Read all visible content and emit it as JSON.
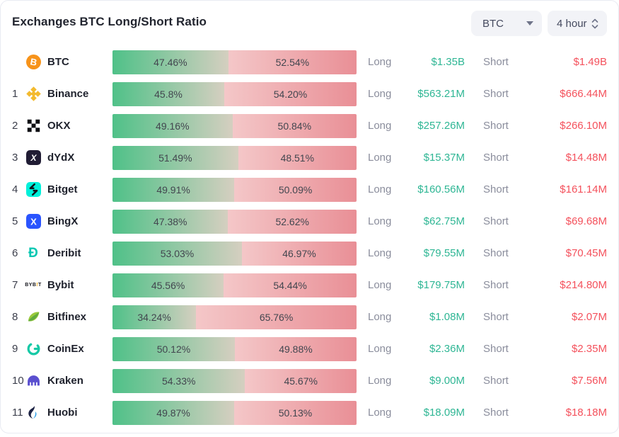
{
  "header": {
    "title": "Exchanges BTC Long/Short Ratio"
  },
  "controls": {
    "symbol": "BTC",
    "interval": "4 hour"
  },
  "labels": {
    "long": "Long",
    "short": "Short"
  },
  "colors": {
    "long_value_text": "#2eb694",
    "short_value_text": "#f4515c",
    "bar_green_start": "#4fc188",
    "bar_green_end": "#d5cfc0",
    "bar_red_start": "#f4c7c8",
    "bar_red_end": "#e98f96"
  },
  "rows": [
    {
      "rank": "",
      "icon": "btc-icon",
      "name": "BTC",
      "long_pct": 47.46,
      "short_pct": 52.54,
      "long_pct_label": "47.46%",
      "short_pct_label": "52.54%",
      "long_value": "$1.35B",
      "short_value": "$1.49B"
    },
    {
      "rank": "1",
      "icon": "binance-icon",
      "name": "Binance",
      "long_pct": 45.8,
      "short_pct": 54.2,
      "long_pct_label": "45.8%",
      "short_pct_label": "54.20%",
      "long_value": "$563.21M",
      "short_value": "$666.44M"
    },
    {
      "rank": "2",
      "icon": "okx-icon",
      "name": "OKX",
      "long_pct": 49.16,
      "short_pct": 50.84,
      "long_pct_label": "49.16%",
      "short_pct_label": "50.84%",
      "long_value": "$257.26M",
      "short_value": "$266.10M"
    },
    {
      "rank": "3",
      "icon": "dydx-icon",
      "name": "dYdX",
      "long_pct": 51.49,
      "short_pct": 48.51,
      "long_pct_label": "51.49%",
      "short_pct_label": "48.51%",
      "long_value": "$15.37M",
      "short_value": "$14.48M"
    },
    {
      "rank": "4",
      "icon": "bitget-icon",
      "name": "Bitget",
      "long_pct": 49.91,
      "short_pct": 50.09,
      "long_pct_label": "49.91%",
      "short_pct_label": "50.09%",
      "long_value": "$160.56M",
      "short_value": "$161.14M"
    },
    {
      "rank": "5",
      "icon": "bingx-icon",
      "name": "BingX",
      "long_pct": 47.38,
      "short_pct": 52.62,
      "long_pct_label": "47.38%",
      "short_pct_label": "52.62%",
      "long_value": "$62.75M",
      "short_value": "$69.68M"
    },
    {
      "rank": "6",
      "icon": "deribit-icon",
      "name": "Deribit",
      "long_pct": 53.03,
      "short_pct": 46.97,
      "long_pct_label": "53.03%",
      "short_pct_label": "46.97%",
      "long_value": "$79.55M",
      "short_value": "$70.45M"
    },
    {
      "rank": "7",
      "icon": "bybit-icon",
      "name": "Bybit",
      "long_pct": 45.56,
      "short_pct": 54.44,
      "long_pct_label": "45.56%",
      "short_pct_label": "54.44%",
      "long_value": "$179.75M",
      "short_value": "$214.80M"
    },
    {
      "rank": "8",
      "icon": "bitfinex-icon",
      "name": "Bitfinex",
      "long_pct": 34.24,
      "short_pct": 65.76,
      "long_pct_label": "34.24%",
      "short_pct_label": "65.76%",
      "long_value": "$1.08M",
      "short_value": "$2.07M"
    },
    {
      "rank": "9",
      "icon": "coinex-icon",
      "name": "CoinEx",
      "long_pct": 50.12,
      "short_pct": 49.88,
      "long_pct_label": "50.12%",
      "short_pct_label": "49.88%",
      "long_value": "$2.36M",
      "short_value": "$2.35M"
    },
    {
      "rank": "10",
      "icon": "kraken-icon",
      "name": "Kraken",
      "long_pct": 54.33,
      "short_pct": 45.67,
      "long_pct_label": "54.33%",
      "short_pct_label": "45.67%",
      "long_value": "$9.00M",
      "short_value": "$7.56M"
    },
    {
      "rank": "11",
      "icon": "huobi-icon",
      "name": "Huobi",
      "long_pct": 49.87,
      "short_pct": 50.13,
      "long_pct_label": "49.87%",
      "short_pct_label": "50.13%",
      "long_value": "$18.09M",
      "short_value": "$18.18M"
    }
  ]
}
